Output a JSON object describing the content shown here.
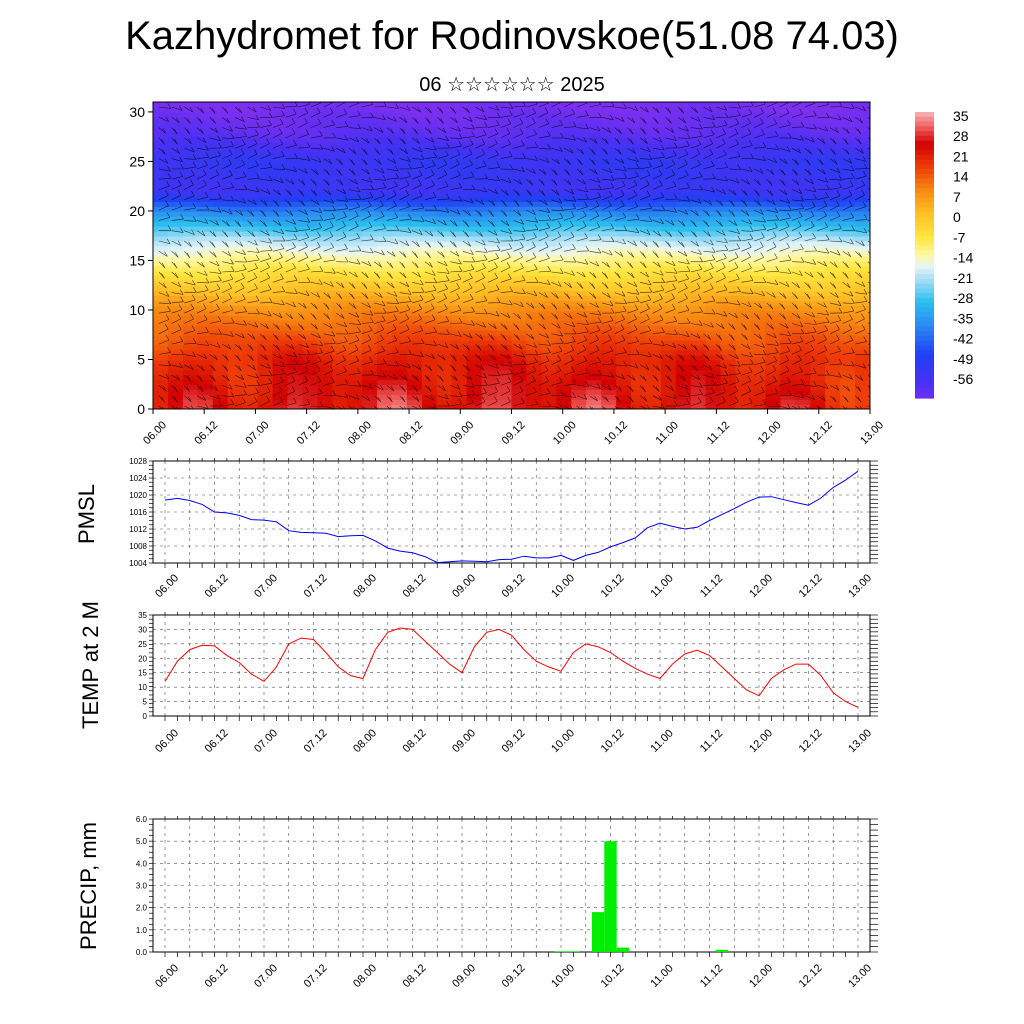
{
  "header": {
    "title": "Kazhydromet for Rodinovskoe(51.08 74.03)",
    "subtitle": "06 ☆☆☆☆☆☆ 2025"
  },
  "chart_data": [
    {
      "type": "heatmap",
      "title": "",
      "xlabel": "",
      "ylabel": "",
      "x_ticks": [
        "06.00",
        "06.12",
        "07.00",
        "07.12",
        "08.00",
        "08.12",
        "09.00",
        "09.12",
        "10.00",
        "10.12",
        "11.00",
        "11.12",
        "12.00",
        "12.12",
        "13.00"
      ],
      "y_ticks": [
        0,
        5,
        10,
        15,
        20,
        25,
        30
      ],
      "ylim": [
        0,
        31
      ],
      "overlay": "wind barbs",
      "colorbar": {
        "labels": [
          "35",
          "28",
          "21",
          "14",
          "7",
          "0",
          "-7",
          "-14",
          "-21",
          "-28",
          "-35",
          "-42",
          "-49",
          "-56"
        ],
        "range": [
          -60,
          38
        ]
      },
      "temperature_profile": {
        "z": [
          0,
          5,
          10,
          14,
          17,
          20,
          22,
          25,
          28,
          31
        ],
        "t": [
          25,
          21,
          10,
          -5,
          -18,
          -36,
          -52,
          -50,
          -58,
          -62
        ]
      },
      "colors": {
        "hot": "#e00000",
        "orange": "#f7a020",
        "yellow": "#fff06a",
        "cyan": "#2bbfef",
        "blue": "#2a2ef5",
        "violet": "#7a2ff0"
      }
    },
    {
      "type": "line",
      "ylabel": "PMSL",
      "x_ticks": [
        "06.00",
        "06.12",
        "07.00",
        "07.12",
        "08.00",
        "08.12",
        "09.00",
        "09.12",
        "10.00",
        "10.12",
        "11.00",
        "11.12",
        "12.00",
        "12.12",
        "13.00"
      ],
      "y_ticks": [
        1004,
        1008,
        1012,
        1016,
        1020,
        1024,
        1028
      ],
      "ylim": [
        1004,
        1028
      ],
      "grid": true,
      "series": [
        {
          "color": "#0000ff",
          "values": [
            1018.8,
            1019.2,
            1018.7,
            1017.8,
            1016,
            1015.8,
            1015.2,
            1014.2,
            1014.1,
            1013.7,
            1011.6,
            1011.2,
            1011.1,
            1011,
            1010.2,
            1010.4,
            1010.5,
            1009.2,
            1007.5,
            1006.8,
            1006.4,
            1005.5,
            1004.1,
            1004.3,
            1004.5,
            1004.4,
            1004.3,
            1004.8,
            1004.9,
            1005.6,
            1005.2,
            1005.2,
            1005.8,
            1004.6,
            1005.8,
            1006.5,
            1007.8,
            1008.8,
            1009.9,
            1012.3,
            1013.4,
            1012.6,
            1012,
            1012.4,
            1014,
            1015.4,
            1016.8,
            1018.3,
            1019.5,
            1019.6,
            1018.9,
            1018.2,
            1017.6,
            1019.3,
            1021.8,
            1023.5,
            1025.6
          ]
        }
      ]
    },
    {
      "type": "line",
      "ylabel": "TEMP at 2 M",
      "x_ticks": [
        "06.00",
        "06.12",
        "07.00",
        "07.12",
        "08.00",
        "08.12",
        "09.00",
        "09.12",
        "10.00",
        "10.12",
        "11.00",
        "11.12",
        "12.00",
        "12.12",
        "13.00"
      ],
      "y_ticks": [
        0,
        5,
        10,
        15,
        20,
        25,
        30,
        35
      ],
      "ylim": [
        0,
        35
      ],
      "grid": true,
      "series": [
        {
          "color": "#ff0000",
          "values": [
            12,
            19,
            23,
            24.5,
            24.3,
            21,
            18.5,
            14.5,
            12,
            17,
            25,
            27,
            26.5,
            22,
            17,
            14,
            13,
            23,
            29,
            30.5,
            30,
            26,
            22,
            18,
            15,
            24,
            29,
            30,
            28,
            23,
            19,
            17,
            15.5,
            22,
            25,
            24,
            22,
            19,
            16.5,
            14.5,
            13,
            18,
            21.5,
            22.8,
            21,
            17,
            13,
            9,
            7,
            13,
            16,
            18,
            18,
            14,
            8,
            5,
            3
          ]
        }
      ]
    },
    {
      "type": "bar",
      "ylabel": "PRECIP, mm",
      "x_ticks": [
        "06.00",
        "06.12",
        "07.00",
        "07.12",
        "08.00",
        "08.12",
        "09.00",
        "09.12",
        "10.00",
        "10.12",
        "11.00",
        "11.12",
        "12.00",
        "12.12",
        "13.00"
      ],
      "y_ticks": [
        "0.0",
        "1.0",
        "2.0",
        "3.0",
        "4.0",
        "5.0",
        "6.0"
      ],
      "ylim": [
        0,
        6
      ],
      "grid": true,
      "bar_color": "#00ee00",
      "bars": [
        {
          "step": 32,
          "value": 0.03
        },
        {
          "step": 33,
          "value": 0.03
        },
        {
          "step": 35,
          "value": 1.8
        },
        {
          "step": 36,
          "value": 5.0
        },
        {
          "step": 37,
          "value": 0.2
        },
        {
          "step": 45,
          "value": 0.1
        }
      ]
    }
  ]
}
